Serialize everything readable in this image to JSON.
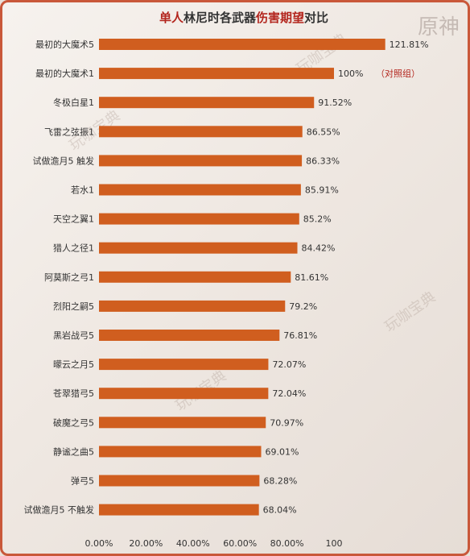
{
  "chart_data": {
    "type": "bar",
    "orientation": "horizontal",
    "title_segments": [
      {
        "text": "单人",
        "color": "#b3261e"
      },
      {
        "text": "林尼时各武器",
        "color": "#333333"
      },
      {
        "text": "伤害期望",
        "color": "#b3261e"
      },
      {
        "text": "对比",
        "color": "#333333"
      }
    ],
    "categories": [
      "最初的大魔术5",
      "最初的大魔术1",
      "冬极白星1",
      "飞雷之弦振1",
      "试做澹月5 触发",
      "若水1",
      "天空之翼1",
      "猎人之径1",
      "阿莫斯之弓1",
      "烈阳之嗣5",
      "黑岩战弓5",
      "曚云之月5",
      "苍翠猎弓5",
      "破魔之弓5",
      "静谧之曲5",
      "弹弓5",
      "试做澹月5 不触发"
    ],
    "values": [
      121.81,
      100,
      91.52,
      86.55,
      86.33,
      85.91,
      85.2,
      84.42,
      81.61,
      79.2,
      76.81,
      72.07,
      72.04,
      70.97,
      69.01,
      68.28,
      68.04
    ],
    "value_labels": [
      "121.81%",
      "100%",
      "91.52%",
      "86.55%",
      "86.33%",
      "85.91%",
      "85.2%",
      "84.42%",
      "81.61%",
      "79.2%",
      "76.81%",
      "72.07%",
      "72.04%",
      "70.97%",
      "69.01%",
      "68.28%",
      "68.04%"
    ],
    "annotation": "（对照组）",
    "x_ticks": [
      "0.00%",
      "20.00%",
      "40.00%",
      "60.00%",
      "80.00%",
      "100"
    ],
    "x_tick_values": [
      0,
      20,
      40,
      60,
      80,
      100
    ],
    "xlim": [
      0,
      128
    ],
    "xlabel": "",
    "ylabel": "",
    "grid": false,
    "legend": "none",
    "bar_color": "#d05e1f",
    "title_color_accent": "#b3261e",
    "annotation_color": "#b3261e"
  },
  "decor": {
    "logo_text": "原神",
    "watermark_text": "玩咖宝典"
  }
}
